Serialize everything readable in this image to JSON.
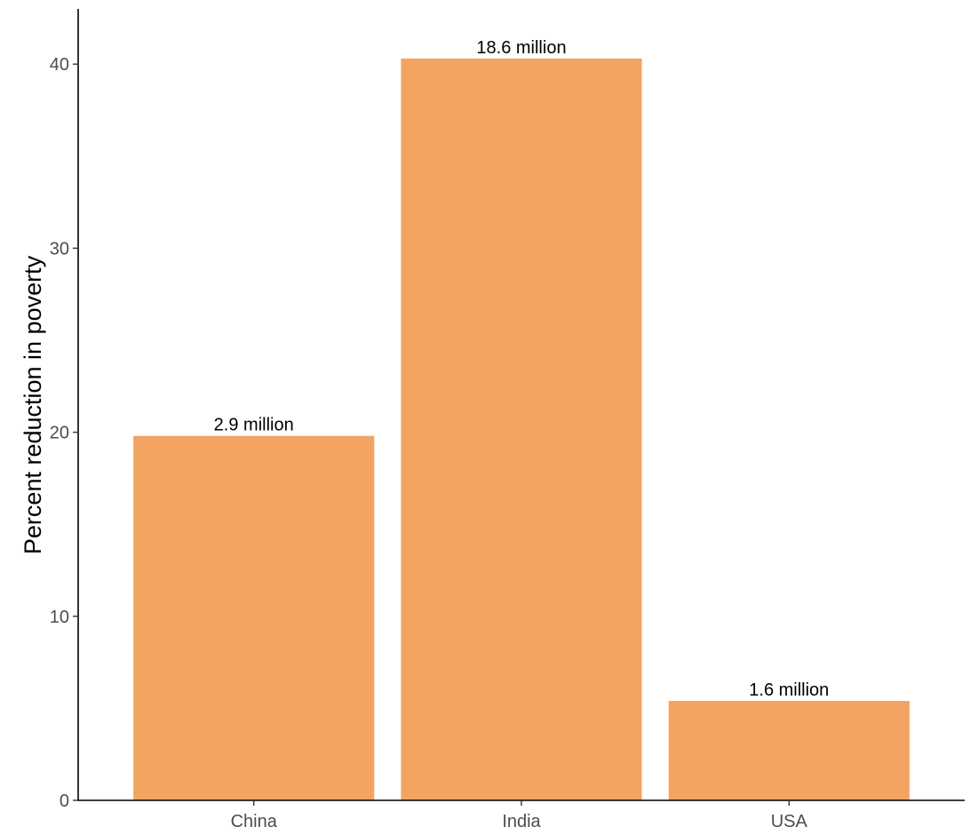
{
  "chart_data": {
    "type": "bar",
    "title": "",
    "xlabel": "",
    "ylabel": "Percent reduction in poverty",
    "categories": [
      "China",
      "India",
      "USA"
    ],
    "values": [
      19.8,
      40.3,
      5.4
    ],
    "data_labels": [
      "2.9 million",
      "18.6 million",
      "1.6 million"
    ],
    "ylim": [
      0,
      43
    ],
    "yticks": [
      "0",
      "10",
      "20",
      "30",
      "40"
    ],
    "grid": false,
    "legend": "none",
    "bar_color": "#F3A462"
  }
}
